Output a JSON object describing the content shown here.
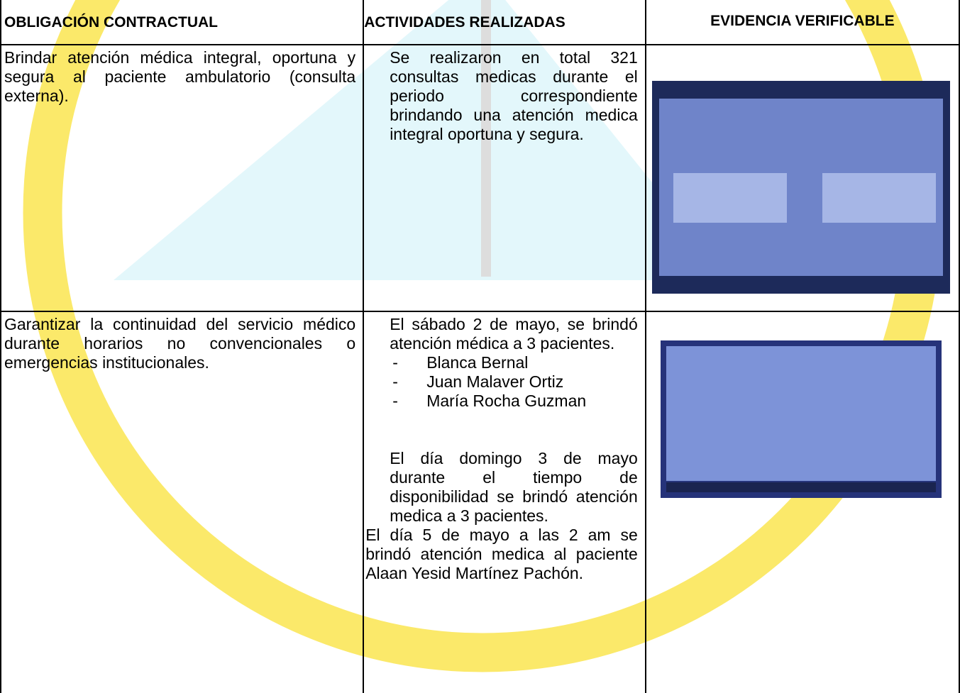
{
  "table": {
    "headers": [
      "OBLIGACIÓN CONTRACTUAL",
      "ACTIVIDADES REALIZADAS",
      "EVIDENCIA VERIFICABLE"
    ],
    "rows": [
      {
        "obligation": "Brindar atención médica integral, oportuna y segura al paciente ambulatorio (consulta externa).",
        "activities": [
          "Se realizaron en total 321 consultas medicas durante el periodo correspondiente brindando una atención medica integral oportuna y segura."
        ]
      },
      {
        "obligation": "Garantizar la continuidad del servicio médico durante horarios no convencionales o emergencias institucionales.",
        "activities": [
          "El sábado 2 de mayo, se brindó atención médica a 3 pacientes."
        ],
        "bullet": "-",
        "patients": [
          "Blanca Bernal",
          "Juan Malaver Ortiz",
          "María Rocha Guzman"
        ],
        "more_activities": [
          "El día domingo 3 de mayo durante el tiempo de disponibilidad se brindó atención medica a 3 pacientes.",
          "El día 5 de mayo a las 2 am se brindó atención medica al paciente Alaan Yesid Martínez Pachón."
        ]
      }
    ]
  }
}
